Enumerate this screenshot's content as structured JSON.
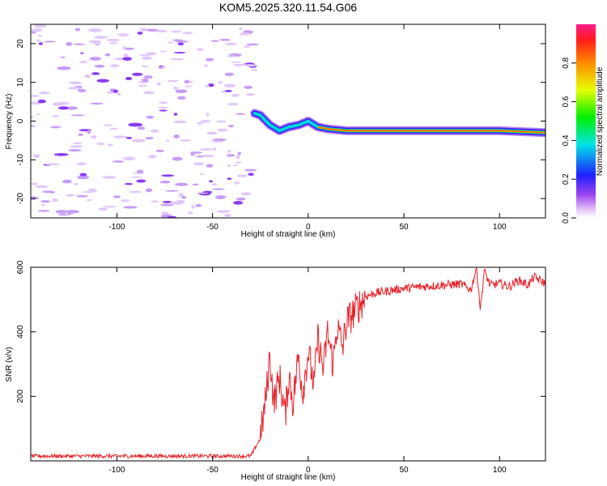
{
  "title": "KOM5.2025.320.11.54.G06",
  "colors": {
    "snr_line": "#e8232a",
    "frame": "#000000"
  },
  "chart_data": [
    {
      "type": "heatmap",
      "title": "KOM5.2025.320.11.54.G06",
      "xlabel": "Height of straight line (km)",
      "ylabel": "Frequency (Hz)",
      "xlim": [
        -145,
        124
      ],
      "ylim": [
        -25,
        25
      ],
      "xticks": [
        -100,
        -50,
        0,
        50,
        100
      ],
      "yticks": [
        -20,
        -10,
        0,
        10,
        20
      ],
      "colorbar": {
        "label": "Normalized spectral amplitude",
        "range": [
          0,
          1
        ],
        "ticks": [
          "0.0",
          "0.2",
          "0.4",
          "0.6",
          "0.8"
        ]
      },
      "main_ridge": {
        "x": [
          -28,
          -25,
          -20,
          -15,
          -10,
          -5,
          0,
          5,
          10,
          20,
          30,
          40,
          60,
          80,
          100,
          124
        ],
        "y": [
          2,
          1.5,
          -1,
          -2.5,
          -1.5,
          -1,
          0,
          -1.5,
          -2,
          -2.5,
          -2.5,
          -2.5,
          -2.5,
          -2.5,
          -2.5,
          -3
        ]
      }
    },
    {
      "type": "line",
      "xlabel": "Height of straight line (km)",
      "ylabel": "SNR (v/v)",
      "xlim": [
        -145,
        124
      ],
      "ylim": [
        0,
        600
      ],
      "xticks": [
        -100,
        -50,
        0,
        50,
        100
      ],
      "yticks": [
        200,
        400,
        600
      ],
      "series": [
        {
          "name": "SNR",
          "x": [
            -145,
            -130,
            -110,
            -90,
            -70,
            -50,
            -40,
            -30,
            -25,
            -22,
            -20,
            -18,
            -15,
            -12,
            -10,
            -8,
            -5,
            -3,
            0,
            3,
            5,
            8,
            10,
            13,
            15,
            18,
            20,
            25,
            30,
            35,
            40,
            50,
            60,
            70,
            80,
            85,
            88,
            90,
            92,
            95,
            100,
            105,
            110,
            115,
            118,
            124
          ],
          "y": [
            15,
            15,
            15,
            15,
            15,
            15,
            15,
            15,
            70,
            200,
            330,
            180,
            260,
            140,
            270,
            180,
            330,
            210,
            340,
            230,
            380,
            280,
            400,
            300,
            420,
            350,
            430,
            470,
            510,
            520,
            525,
            535,
            540,
            545,
            548,
            530,
            600,
            470,
            590,
            545,
            550,
            540,
            560,
            545,
            570,
            550
          ]
        }
      ]
    }
  ]
}
